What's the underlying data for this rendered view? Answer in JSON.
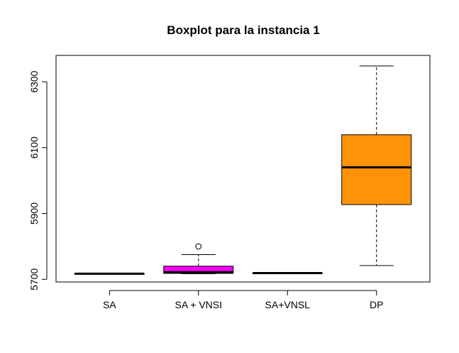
{
  "chart_data": {
    "type": "boxplot",
    "title": "Boxplot para la instancia 1",
    "xlabel": "",
    "ylabel": "",
    "categories": [
      "SA",
      "SA + VNSI",
      "SA+VNSL",
      "DP"
    ],
    "ylim": [
      5692,
      6380
    ],
    "y_ticks": [
      5700,
      5900,
      6100,
      6300
    ],
    "series": [
      {
        "category": "SA",
        "fill": "#ff00ff",
        "min": 5717,
        "q1": 5717,
        "median": 5717,
        "q3": 5717,
        "max": 5717,
        "outliers": []
      },
      {
        "category": "SA + VNSI",
        "fill": "#ff00ff",
        "min": 5717,
        "q1": 5718,
        "median": 5722,
        "q3": 5740,
        "max": 5775,
        "outliers": [
          5800
        ]
      },
      {
        "category": "SA+VNSL",
        "fill": "#ff00ff",
        "min": 5719,
        "q1": 5719,
        "median": 5719,
        "q3": 5719,
        "max": 5719,
        "outliers": []
      },
      {
        "category": "DP",
        "fill": "#ff9308",
        "min": 5742,
        "q1": 5927,
        "median": 6040,
        "q3": 6139,
        "max": 6348,
        "outliers": []
      }
    ],
    "grid": false,
    "legend": "none"
  }
}
